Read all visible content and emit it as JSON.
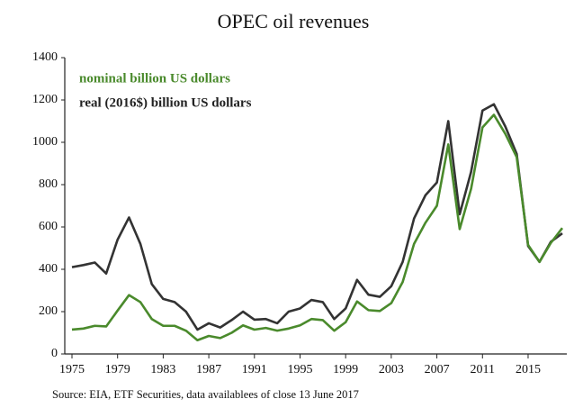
{
  "chart_data": {
    "type": "line",
    "title": "OPEC oil revenues",
    "source": "Source: EIA, ETF Securities, data availablees of close 13 June 2017",
    "x": [
      1975,
      1976,
      1977,
      1978,
      1979,
      1980,
      1981,
      1982,
      1983,
      1984,
      1985,
      1986,
      1987,
      1988,
      1989,
      1990,
      1991,
      1992,
      1993,
      1994,
      1995,
      1996,
      1997,
      1998,
      1999,
      2000,
      2001,
      2002,
      2003,
      2004,
      2005,
      2006,
      2007,
      2008,
      2009,
      2010,
      2011,
      2012,
      2013,
      2014,
      2015,
      2016,
      2017,
      2018
    ],
    "series": [
      {
        "name": "nominal billion US dollars",
        "color": "#4a8a2c",
        "values": [
          115,
          120,
          133,
          130,
          205,
          278,
          245,
          165,
          133,
          133,
          110,
          65,
          85,
          75,
          100,
          135,
          115,
          123,
          110,
          120,
          135,
          165,
          160,
          110,
          150,
          248,
          207,
          203,
          240,
          340,
          520,
          620,
          700,
          990,
          590,
          780,
          1070,
          1130,
          1040,
          930,
          515,
          435,
          525,
          595
        ]
      },
      {
        "name": "real (2016$) billion US dollars",
        "color": "#333333",
        "values": [
          410,
          420,
          432,
          380,
          540,
          645,
          520,
          330,
          260,
          245,
          200,
          115,
          145,
          125,
          160,
          200,
          162,
          165,
          145,
          200,
          215,
          255,
          245,
          165,
          215,
          350,
          280,
          270,
          320,
          435,
          640,
          750,
          810,
          1100,
          660,
          860,
          1150,
          1180,
          1075,
          945,
          510,
          435,
          530,
          570
        ]
      }
    ],
    "xlim": [
      1975,
      2018
    ],
    "xticks": [
      1975,
      1979,
      1983,
      1987,
      1991,
      1995,
      1999,
      2003,
      2007,
      2011,
      2015
    ],
    "ylim": [
      0,
      1400
    ],
    "yticks": [
      0,
      200,
      400,
      600,
      800,
      1000,
      1200,
      1400
    ]
  }
}
